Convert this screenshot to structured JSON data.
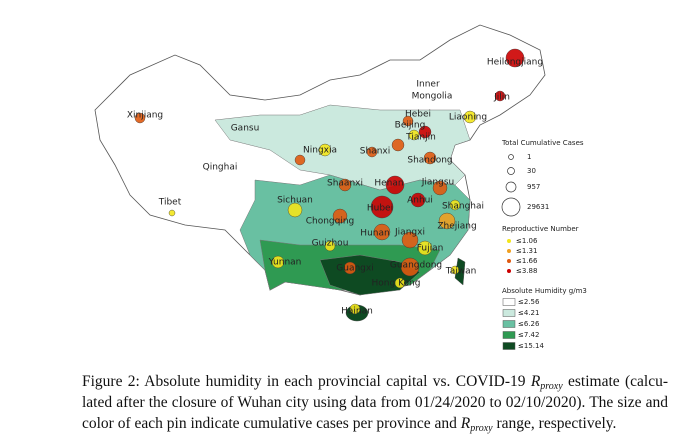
{
  "map": {
    "labels": [
      "Heilongjiang",
      "Inner",
      "Mongolia",
      "Xinjiang",
      "Gansu",
      "Hebei",
      "Beijing",
      "Tianjin",
      "Liaoning",
      "Jilin",
      "Qinghai",
      "Ningxia",
      "Shanxi",
      "Shandong",
      "Shaanxi",
      "Henan",
      "Jiangsu",
      "Tibet",
      "Sichuan",
      "Anhui",
      "Shanghai",
      "Hubei",
      "Chongqing",
      "Zhejiang",
      "Hunan",
      "Jiangxi",
      "Guizhou",
      "Fujian",
      "Yunnan",
      "Guangxi",
      "Guangdong",
      "Taiwan",
      "Hong Kong",
      "Hainan"
    ]
  },
  "legend": {
    "cases_title": "Total Cumulative Cases",
    "cases": [
      "1",
      "30",
      "957",
      "29631"
    ],
    "r_title": "Reproductive Number",
    "r": [
      "≤1.06",
      "≤1.31",
      "≤1.66",
      "≤3.88"
    ],
    "humidity_title": "Absolute Humidity g/m3",
    "humidity": [
      "≤2.56",
      "≤4.21",
      "≤6.26",
      "≤7.42",
      "≤15.14"
    ]
  },
  "caption": {
    "l1a": "Figure 2: Absolute humidity in each provincial capital vs. COVID-19 ",
    "l1m": "R",
    "l1s": "proxy",
    "l1b": " estimate (calcu-",
    "l2": "lated after the closure of Wuhan city using data from 01/24/2020 to 02/10/2020). The size and",
    "l3a": "color of each pin indicate cumulative cases per province and ",
    "l3m": "R",
    "l3s": "proxy",
    "l3b": " range, respectively."
  }
}
